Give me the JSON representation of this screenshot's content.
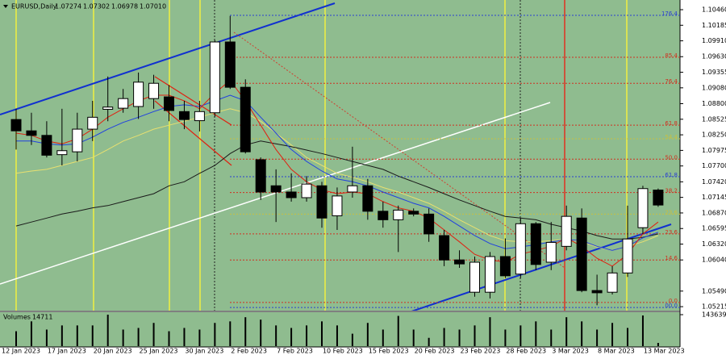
{
  "chart_data": {
    "type": "candlestick",
    "title": "EURUSD,Daily",
    "last_close_label": "1.07010",
    "categories": [
      "12 Jan 2023",
      null,
      null,
      "17 Jan 2023",
      null,
      null,
      "20 Jan 2023",
      null,
      null,
      "25 Jan 2023",
      null,
      null,
      "30 Jan 2023",
      null,
      null,
      "2 Feb 2023",
      null,
      null,
      "7 Feb 2023",
      null,
      null,
      "10 Feb 2023",
      null,
      null,
      "15 Feb 2023",
      null,
      null,
      "20 Feb 2023",
      null,
      null,
      "23 Feb 2023",
      null,
      null,
      "28 Feb 2023",
      null,
      null,
      "3 Mar 2023",
      null,
      null,
      "8 Mar 2023",
      null,
      null,
      "13 Mar 2023"
    ],
    "open": [
      1.0852,
      1.0832,
      1.0824,
      1.079,
      1.0795,
      1.0835,
      1.087,
      1.0872,
      1.0875,
      1.0889,
      1.0892,
      1.0866,
      1.085,
      1.0864,
      1.0989,
      1.0909,
      1.0781,
      1.0735,
      1.0724,
      1.0714,
      1.0735,
      1.0682,
      1.0724,
      1.0735,
      1.069,
      1.0675,
      1.069,
      1.0685,
      1.0647,
      1.0604,
      1.0547,
      1.0547,
      1.061,
      1.0579,
      1.0668,
      1.06,
      1.0628,
      1.0678,
      1.055,
      1.0547,
      1.0581,
      1.0661,
      1.07274
    ],
    "high": [
      1.0871,
      1.0864,
      1.0849,
      1.0871,
      1.0864,
      1.0885,
      1.0928,
      1.0906,
      1.0935,
      1.0931,
      1.0913,
      1.0885,
      1.0885,
      1.0992,
      1.1035,
      1.0923,
      1.0785,
      1.0764,
      1.0757,
      1.0752,
      1.0742,
      1.0732,
      1.0804,
      1.0747,
      1.0707,
      1.07,
      1.0695,
      1.0695,
      1.0657,
      1.0621,
      1.061,
      1.0618,
      1.0642,
      1.0678,
      1.0671,
      1.0671,
      1.07,
      1.0695,
      1.0578,
      1.0593,
      1.07,
      1.0735,
      1.07302
    ],
    "low": [
      1.0799,
      1.0807,
      1.0785,
      1.0771,
      1.0778,
      1.0814,
      1.0849,
      1.0864,
      1.0853,
      1.0871,
      1.0849,
      1.0835,
      1.0831,
      1.0857,
      1.0906,
      1.0792,
      1.071,
      1.0671,
      1.0707,
      1.0707,
      1.0661,
      1.0657,
      1.0714,
      1.0675,
      1.0661,
      1.0618,
      1.0681,
      1.0636,
      1.0593,
      1.059,
      1.0539,
      1.0536,
      1.0572,
      1.0572,
      1.0586,
      1.0586,
      1.0621,
      1.0547,
      1.0524,
      1.0543,
      1.0574,
      1.065,
      1.06978
    ],
    "close": [
      1.0832,
      1.0824,
      1.0789,
      1.0797,
      1.0835,
      1.0856,
      1.0874,
      1.0889,
      1.0918,
      1.0916,
      1.0868,
      1.0852,
      1.0866,
      1.0989,
      1.0909,
      1.0795,
      1.0724,
      1.0724,
      1.0714,
      1.0738,
      1.0678,
      1.0717,
      1.0735,
      1.069,
      1.0675,
      1.0692,
      1.0685,
      1.065,
      1.0604,
      1.0597,
      1.06,
      1.061,
      1.0576,
      1.0668,
      1.0596,
      1.0635,
      1.0681,
      1.055,
      1.0546,
      1.0581,
      1.0641,
      1.073,
      1.0701
    ],
    "ylim": [
      1.05145,
      1.10631
    ],
    "yticks": [
      {
        "value": 1.1046,
        "label": "1.10460"
      },
      1.10185,
      {
        "value": 1.0991,
        "label": "1.09910"
      },
      {
        "value": 1.0963,
        "label": "1.09630"
      },
      1.09355,
      {
        "value": 1.0908,
        "label": "1.09080"
      },
      {
        "value": 1.088,
        "label": "1.08800"
      },
      1.08525,
      {
        "value": 1.0825,
        "label": "1.08250"
      },
      1.07975,
      {
        "value": 1.077,
        "label": "1.07700"
      },
      {
        "value": 1.0742,
        "label": "1.07420"
      },
      1.07145,
      {
        "value": 1.0687,
        "label": "1.06870"
      },
      1.06595,
      {
        "value": 1.0632,
        "label": "1.06320"
      },
      {
        "value": 1.0604,
        "label": "1.06040"
      },
      {
        "value": 1.0549,
        "label": "1.05490"
      },
      1.05215
    ],
    "levels": [
      {
        "label": "176.4",
        "value": 1.1036,
        "color": "#2a3fd0"
      },
      {
        "label": "85.4",
        "value": 1.0962,
        "color": "#d03020"
      },
      {
        "label": "76.4",
        "value": 1.0916,
        "color": "#d03020"
      },
      {
        "label": "61.8",
        "value": 1.0842,
        "color": "#d03020"
      },
      {
        "label": "54.4",
        "value": 1.0818,
        "color": "#c8c040"
      },
      {
        "label": "50.0",
        "value": 1.0782,
        "color": "#d03020"
      },
      {
        "label": "61.8",
        "value": 1.0751,
        "color": "#2a3fd0"
      },
      {
        "label": "38.2",
        "value": 1.0723,
        "color": "#d03020"
      },
      {
        "label": "23.6",
        "value": 1.0685,
        "color": "#c8c040"
      },
      {
        "label": "23.6",
        "value": 1.065,
        "color": "#d03020"
      },
      {
        "label": "14.6",
        "value": 1.0604,
        "color": "#d03020"
      },
      {
        "label": "0.0",
        "value": 1.0529,
        "color": "#d03020"
      },
      {
        "label": "00.0",
        "value": 1.052,
        "color": "#2a3fd0"
      }
    ],
    "indicators": [
      {
        "color": "#e8e070",
        "values": [
          1.0757,
          1.0761,
          1.0764,
          1.0771,
          1.0778,
          1.0785,
          1.0799,
          1.0814,
          1.0824,
          1.0835,
          1.0842,
          1.0849,
          1.0856,
          1.0864,
          1.0871,
          1.0864,
          1.0849,
          1.0828,
          1.0807,
          1.0785,
          1.0771,
          1.0757,
          1.075,
          1.0742,
          1.0732,
          1.0724,
          1.0714,
          1.0704,
          1.069,
          1.0675,
          1.0661,
          1.0647,
          1.0638,
          1.0636,
          1.0636,
          1.0638,
          1.0641,
          1.0636,
          1.0627,
          1.0621,
          1.0628,
          1.0636,
          1.0647
        ]
      },
      {
        "color": "#1a1a1a",
        "values": [
          1.0664,
          1.0671,
          1.0678,
          1.0685,
          1.069,
          1.0696,
          1.07,
          1.0707,
          1.0714,
          1.0721,
          1.0735,
          1.0742,
          1.0757,
          1.0771,
          1.0792,
          1.0807,
          1.0814,
          1.0809,
          1.0804,
          1.0798,
          1.0792,
          1.0785,
          1.0778,
          1.0771,
          1.0764,
          1.0752,
          1.0742,
          1.0732,
          1.0721,
          1.071,
          1.07,
          1.069,
          1.0681,
          1.0678,
          1.0675,
          1.0667,
          1.0661,
          1.0655,
          1.0647,
          1.0641,
          1.0641,
          1.0644,
          1.065
        ]
      },
      {
        "color": "#2040e0",
        "values": [
          1.0814,
          1.0814,
          1.0809,
          1.0807,
          1.0809,
          1.0821,
          1.0835,
          1.0847,
          1.0856,
          1.0866,
          1.0875,
          1.0878,
          1.0875,
          1.0885,
          1.0895,
          1.0885,
          1.0856,
          1.0828,
          1.0799,
          1.0778,
          1.0761,
          1.0747,
          1.0742,
          1.0735,
          1.0724,
          1.0714,
          1.0704,
          1.0696,
          1.0681,
          1.0664,
          1.0647,
          1.0633,
          1.0624,
          1.0627,
          1.0631,
          1.0636,
          1.064,
          1.0638,
          1.0628,
          1.0621,
          1.0628,
          1.0643,
          1.0653
        ]
      },
      {
        "color": "#e02010",
        "values": [
          1.0828,
          1.0824,
          1.0814,
          1.0809,
          1.0818,
          1.0835,
          1.0856,
          1.0871,
          1.0885,
          1.0895,
          1.0895,
          1.0885,
          1.0871,
          1.0899,
          1.0921,
          1.0885,
          1.0842,
          1.0799,
          1.0764,
          1.0742,
          1.0728,
          1.0721,
          1.0724,
          1.0721,
          1.0707,
          1.0696,
          1.069,
          1.0678,
          1.0657,
          1.0636,
          1.0614,
          1.0604,
          1.06,
          1.0614,
          1.0621,
          1.0628,
          1.0643,
          1.0628,
          1.0607,
          1.0593,
          1.0614,
          1.065,
          1.0671
        ]
      }
    ],
    "volume": {
      "title": "Volumes",
      "values": [
        68000,
        113000,
        75600,
        94500,
        94500,
        94500,
        143639,
        75600,
        83000,
        106000,
        68000,
        83000,
        75600,
        106000,
        113000,
        132000,
        121000,
        94500,
        83000,
        94500,
        113000,
        94500,
        56700,
        106000,
        75600,
        138000,
        75600,
        37800,
        83000,
        75600,
        94500,
        132000,
        75600,
        94500,
        113000,
        75600,
        132000,
        113000,
        75600,
        106000,
        83000,
        140000,
        14711
      ],
      "ylim": [
        0,
        143639
      ],
      "yticks": [
        143639
      ]
    }
  }
}
